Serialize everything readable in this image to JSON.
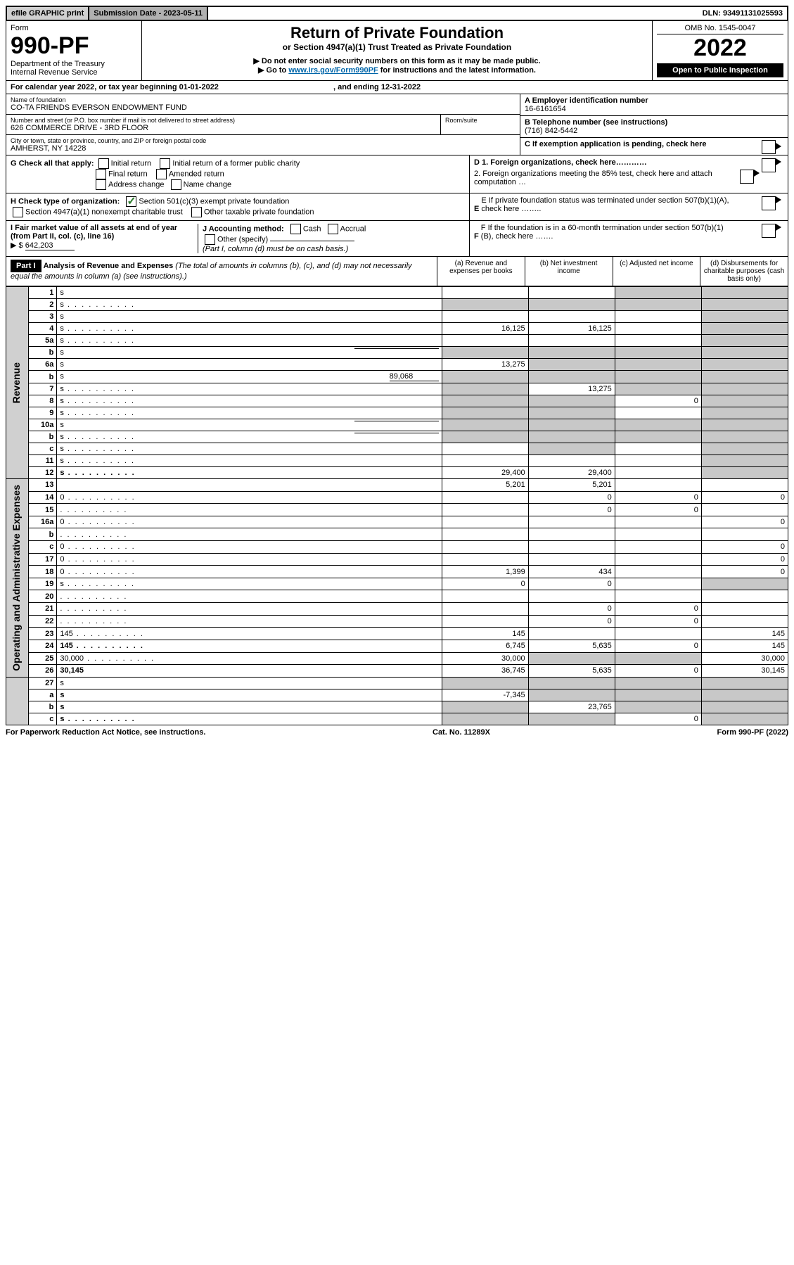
{
  "topbar": {
    "efile": "efile GRAPHIC print",
    "submission": "Submission Date - 2023-05-11",
    "dln": "DLN: 93491131025593"
  },
  "header": {
    "form_label": "Form",
    "form_number": "990-PF",
    "dept": "Department of the Treasury",
    "irs": "Internal Revenue Service",
    "title": "Return of Private Foundation",
    "subtitle": "or Section 4947(a)(1) Trust Treated as Private Foundation",
    "note1": "▶ Do not enter social security numbers on this form as it may be made public.",
    "note2_prefix": "▶ Go to ",
    "note2_link": "www.irs.gov/Form990PF",
    "note2_suffix": " for instructions and the latest information.",
    "omb": "OMB No. 1545-0047",
    "year": "2022",
    "open": "Open to Public Inspection"
  },
  "calyear": {
    "text_prefix": "For calendar year 2022, or tax year beginning ",
    "begin": "01-01-2022",
    "mid": " , and ending ",
    "end": "12-31-2022"
  },
  "name_block": {
    "name_label": "Name of foundation",
    "name": "CO-TA FRIENDS EVERSON ENDOWMENT FUND",
    "addr_label": "Number and street (or P.O. box number if mail is not delivered to street address)",
    "addr": "626 COMMERCE DRIVE - 3RD FLOOR",
    "room_label": "Room/suite",
    "city_label": "City or town, state or province, country, and ZIP or foreign postal code",
    "city": "AMHERST, NY  14228",
    "a_label": "A Employer identification number",
    "a_val": "16-6161654",
    "b_label": "B Telephone number (see instructions)",
    "b_val": "(716) 842-5442",
    "c_label": "C If exemption application is pending, check here"
  },
  "checks": {
    "g_label": "G Check all that apply:",
    "g_opts": [
      "Initial return",
      "Initial return of a former public charity",
      "Final return",
      "Amended return",
      "Address change",
      "Name change"
    ],
    "h_label": "H Check type of organization:",
    "h_opt1": "Section 501(c)(3) exempt private foundation",
    "h_opt2": "Section 4947(a)(1) nonexempt charitable trust",
    "h_opt3": "Other taxable private foundation",
    "i_label": "I Fair market value of all assets at end of year (from Part II, col. (c), line 16)",
    "i_prefix": "▶ $",
    "i_val": "642,203",
    "j_label": "J Accounting method:",
    "j_cash": "Cash",
    "j_accrual": "Accrual",
    "j_other": "Other (specify)",
    "j_note": "(Part I, column (d) must be on cash basis.)",
    "d1": "D 1. Foreign organizations, check here…………",
    "d2": "2. Foreign organizations meeting the 85% test, check here and attach computation …",
    "e": "E  If private foundation status was terminated under section 507(b)(1)(A), check here ……..",
    "f": "F  If the foundation is in a 60-month termination under section 507(b)(1)(B), check here ……."
  },
  "part1": {
    "label": "Part I",
    "title": "Analysis of Revenue and Expenses",
    "title_note": " (The total of amounts in columns (b), (c), and (d) may not necessarily equal the amounts in column (a) (see instructions).)",
    "col_a": "(a) Revenue and expenses per books",
    "col_b": "(b) Net investment income",
    "col_c": "(c) Adjusted net income",
    "col_d": "(d) Disbursements for charitable purposes (cash basis only)"
  },
  "sections": {
    "revenue": "Revenue",
    "opexp": "Operating and Administrative Expenses"
  },
  "rows": [
    {
      "n": "1",
      "d": "s",
      "a": "",
      "b": "",
      "c": "s",
      "sec": "rev"
    },
    {
      "n": "2",
      "d": "s",
      "a": "s",
      "b": "s",
      "c": "s",
      "sec": "rev",
      "bold_not": true,
      "dots": true
    },
    {
      "n": "3",
      "d": "s",
      "a": "",
      "b": "",
      "c": "",
      "sec": "rev"
    },
    {
      "n": "4",
      "d": "s",
      "a": "16,125",
      "b": "16,125",
      "c": "",
      "sec": "rev",
      "dots": true
    },
    {
      "n": "5a",
      "d": "s",
      "a": "",
      "b": "",
      "c": "",
      "sec": "rev",
      "dots": true
    },
    {
      "n": "b",
      "d": "s",
      "a": "s",
      "b": "s",
      "c": "s",
      "sec": "rev",
      "inline_blank": true
    },
    {
      "n": "6a",
      "d": "s",
      "a": "13,275",
      "b": "s",
      "c": "s",
      "sec": "rev"
    },
    {
      "n": "b",
      "d": "s",
      "a": "s",
      "b": "s",
      "c": "s",
      "sec": "rev",
      "inline_val": "89,068"
    },
    {
      "n": "7",
      "d": "s",
      "a": "s",
      "b": "13,275",
      "c": "s",
      "sec": "rev",
      "dots": true
    },
    {
      "n": "8",
      "d": "s",
      "a": "s",
      "b": "s",
      "c": "0",
      "sec": "rev",
      "dots": true
    },
    {
      "n": "9",
      "d": "s",
      "a": "s",
      "b": "s",
      "c": "",
      "sec": "rev",
      "dots": true
    },
    {
      "n": "10a",
      "d": "s",
      "a": "s",
      "b": "s",
      "c": "s",
      "sec": "rev",
      "inline_blank": true
    },
    {
      "n": "b",
      "d": "s",
      "a": "s",
      "b": "s",
      "c": "s",
      "sec": "rev",
      "inline_blank": true,
      "dots": true
    },
    {
      "n": "c",
      "d": "s",
      "a": "",
      "b": "s",
      "c": "",
      "sec": "rev",
      "dots": true
    },
    {
      "n": "11",
      "d": "s",
      "a": "",
      "b": "",
      "c": "",
      "sec": "rev",
      "dots": true
    },
    {
      "n": "12",
      "d": "s",
      "a": "29,400",
      "b": "29,400",
      "c": "",
      "sec": "rev",
      "bold": true,
      "dots": true
    },
    {
      "n": "13",
      "d": "",
      "a": "5,201",
      "b": "5,201",
      "c": "",
      "sec": "op"
    },
    {
      "n": "14",
      "d": "0",
      "a": "",
      "b": "0",
      "c": "0",
      "sec": "op",
      "dots": true
    },
    {
      "n": "15",
      "d": "",
      "a": "",
      "b": "0",
      "c": "0",
      "sec": "op",
      "dots": true
    },
    {
      "n": "16a",
      "d": "0",
      "a": "",
      "b": "",
      "c": "",
      "sec": "op",
      "dots": true
    },
    {
      "n": "b",
      "d": "",
      "a": "",
      "b": "",
      "c": "",
      "sec": "op",
      "dots": true
    },
    {
      "n": "c",
      "d": "0",
      "a": "",
      "b": "",
      "c": "",
      "sec": "op",
      "dots": true
    },
    {
      "n": "17",
      "d": "0",
      "a": "",
      "b": "",
      "c": "",
      "sec": "op",
      "dots": true
    },
    {
      "n": "18",
      "d": "0",
      "a": "1,399",
      "b": "434",
      "c": "",
      "sec": "op",
      "dots": true
    },
    {
      "n": "19",
      "d": "s",
      "a": "0",
      "b": "0",
      "c": "",
      "sec": "op",
      "dots": true
    },
    {
      "n": "20",
      "d": "",
      "a": "",
      "b": "",
      "c": "",
      "sec": "op",
      "dots": true
    },
    {
      "n": "21",
      "d": "",
      "a": "",
      "b": "0",
      "c": "0",
      "sec": "op",
      "dots": true
    },
    {
      "n": "22",
      "d": "",
      "a": "",
      "b": "0",
      "c": "0",
      "sec": "op",
      "dots": true
    },
    {
      "n": "23",
      "d": "145",
      "a": "145",
      "b": "",
      "c": "",
      "sec": "op",
      "dots": true
    },
    {
      "n": "24",
      "d": "145",
      "a": "6,745",
      "b": "5,635",
      "c": "0",
      "sec": "op",
      "bold": true,
      "dots": true
    },
    {
      "n": "25",
      "d": "30,000",
      "a": "30,000",
      "b": "s",
      "c": "s",
      "sec": "op",
      "dots": true
    },
    {
      "n": "26",
      "d": "30,145",
      "a": "36,745",
      "b": "5,635",
      "c": "0",
      "sec": "op",
      "bold": true
    },
    {
      "n": "27",
      "d": "s",
      "a": "s",
      "b": "s",
      "c": "s",
      "sec": "none"
    },
    {
      "n": "a",
      "d": "s",
      "a": "-7,345",
      "b": "s",
      "c": "s",
      "sec": "none",
      "bold": true
    },
    {
      "n": "b",
      "d": "s",
      "a": "s",
      "b": "23,765",
      "c": "s",
      "sec": "none",
      "bold": true
    },
    {
      "n": "c",
      "d": "s",
      "a": "s",
      "b": "s",
      "c": "0",
      "sec": "none",
      "bold": true,
      "dots": true
    }
  ],
  "footer": {
    "left": "For Paperwork Reduction Act Notice, see instructions.",
    "mid": "Cat. No. 11289X",
    "right": "Form 990-PF (2022)"
  },
  "colors": {
    "shade": "#c8c8c8",
    "header_shade": "#d0d0d0",
    "link": "#0066aa",
    "check_green": "#2a7a2a"
  }
}
